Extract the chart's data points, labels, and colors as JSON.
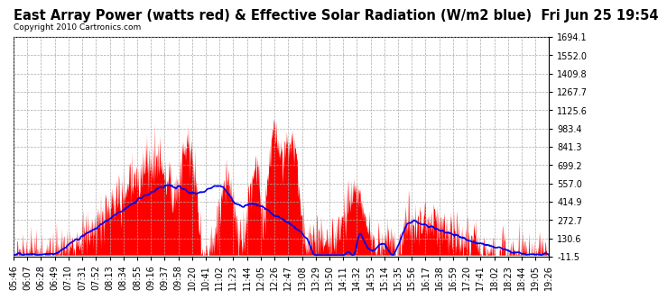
{
  "title": "East Array Power (watts red) & Effective Solar Radiation (W/m2 blue)  Fri Jun 25 19:54",
  "copyright": "Copyright 2010 Cartronics.com",
  "ymin": -11.5,
  "ymax": 1694.1,
  "yticks": [
    1694.1,
    1552.0,
    1409.8,
    1267.7,
    1125.6,
    983.4,
    841.3,
    699.2,
    557.0,
    414.9,
    272.7,
    130.6,
    -11.5
  ],
  "bg_color": "#ffffff",
  "plot_bg_color": "#ffffff",
  "grid_color": "#aaaaaa",
  "red_color": "#ff0000",
  "blue_color": "#0000ee",
  "title_fontsize": 10.5,
  "tick_fontsize": 7,
  "copyright_fontsize": 6.5,
  "xtick_labels": [
    "05:46",
    "06:07",
    "06:28",
    "06:49",
    "07:10",
    "07:31",
    "07:52",
    "08:13",
    "08:34",
    "08:55",
    "09:16",
    "09:37",
    "09:58",
    "10:20",
    "10:41",
    "11:02",
    "11:23",
    "11:44",
    "12:05",
    "12:26",
    "12:47",
    "13:08",
    "13:29",
    "13:50",
    "14:11",
    "14:32",
    "14:53",
    "15:14",
    "15:35",
    "15:56",
    "16:17",
    "16:38",
    "16:59",
    "17:20",
    "17:41",
    "18:02",
    "18:23",
    "18:44",
    "19:05",
    "19:26"
  ]
}
